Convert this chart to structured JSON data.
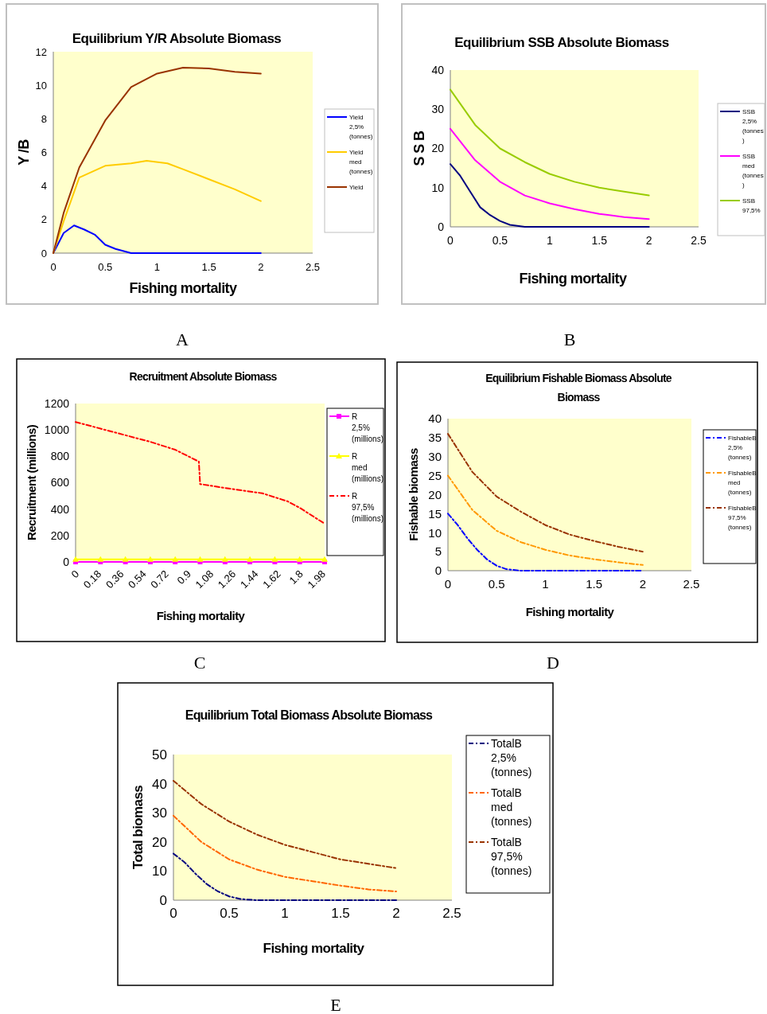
{
  "chart_data": [
    {
      "type": "line",
      "title": "Equilibrium Y/R Absolute Biomass",
      "xlabel": "Fishing mortality",
      "ylabel": "Y /B",
      "xlim": [
        0,
        2.5
      ],
      "xticks": [
        0,
        0.5,
        1,
        1.5,
        2,
        2.5
      ],
      "ylim": [
        0,
        12
      ],
      "yticks": [
        0,
        2,
        4,
        6,
        8,
        10,
        12
      ],
      "legend": "right",
      "annotations": [
        "A"
      ],
      "series": [
        {
          "name": "Yield 2,5% (tonnes)",
          "color": "#0000ff",
          "x": [
            0,
            0.1,
            0.2,
            0.3,
            0.4,
            0.5,
            0.6,
            0.75,
            1,
            1.5,
            2
          ],
          "values": [
            0,
            1.2,
            1.65,
            1.4,
            1.1,
            0.5,
            0.25,
            0,
            0,
            0,
            0
          ]
        },
        {
          "name": "Yield med (tonnes)",
          "color": "#ffcc00",
          "x": [
            0,
            0.1,
            0.25,
            0.5,
            0.75,
            0.9,
            1.1,
            1.25,
            1.5,
            1.75,
            2
          ],
          "values": [
            0,
            1.9,
            4.5,
            5.2,
            5.35,
            5.5,
            5.35,
            5,
            4.4,
            3.8,
            3.1
          ]
        },
        {
          "name": "Yield",
          "color": "#993300",
          "x": [
            0,
            0.1,
            0.25,
            0.5,
            0.75,
            1,
            1.25,
            1.5,
            1.75,
            2
          ],
          "values": [
            0,
            2.4,
            5.1,
            7.9,
            9.9,
            10.7,
            11.05,
            11,
            10.8,
            10.7
          ]
        }
      ]
    },
    {
      "type": "line",
      "title": "Equilibrium SSB Absolute Biomass",
      "xlabel": "Fishing mortality",
      "ylabel": "S S B",
      "xlim": [
        0,
        2.5
      ],
      "xticks": [
        0,
        0.5,
        1,
        1.5,
        2,
        2.5
      ],
      "ylim": [
        0,
        40
      ],
      "yticks": [
        0,
        10,
        20,
        30,
        40
      ],
      "legend": "right",
      "annotations": [
        "B"
      ],
      "series": [
        {
          "name": "SSB 2,5% (tonnes )",
          "color": "#000080",
          "x": [
            0,
            0.1,
            0.2,
            0.3,
            0.4,
            0.5,
            0.6,
            0.75,
            1,
            1.5,
            2
          ],
          "values": [
            16,
            13,
            9,
            5,
            3,
            1.5,
            0.5,
            0,
            0,
            0,
            0
          ]
        },
        {
          "name": "SSB med (tonnes )",
          "color": "#ff00ff",
          "x": [
            0,
            0.25,
            0.5,
            0.75,
            1,
            1.25,
            1.5,
            1.75,
            2
          ],
          "values": [
            25,
            17,
            11.5,
            8,
            6,
            4.5,
            3.3,
            2.5,
            2
          ]
        },
        {
          "name": "SSB 97,5%",
          "color": "#99cc00",
          "x": [
            0,
            0.25,
            0.5,
            0.75,
            1,
            1.25,
            1.5,
            1.75,
            2
          ],
          "values": [
            35,
            26,
            20,
            16.5,
            13.5,
            11.5,
            10,
            9,
            8
          ]
        }
      ]
    },
    {
      "type": "line",
      "title": "Recruitment Absolute Biomass",
      "xlabel": "Fishing mortality",
      "ylabel": "Recruitment (millions)",
      "xlim": [
        0,
        2
      ],
      "xticks": [
        0,
        0.18,
        0.36,
        0.54,
        0.72,
        0.9,
        1.08,
        1.26,
        1.44,
        1.62,
        1.8,
        1.98
      ],
      "ylim": [
        0,
        1200
      ],
      "yticks": [
        0,
        200,
        400,
        600,
        800,
        1000,
        1200
      ],
      "legend": "right",
      "annotations": [
        "C"
      ],
      "series": [
        {
          "name": "R 2,5% (millions)",
          "color": "#ff00ff",
          "marker": "square",
          "x": [
            0,
            0.2,
            0.4,
            0.6,
            0.8,
            1,
            1.2,
            1.4,
            1.6,
            1.8,
            2
          ],
          "values": [
            0,
            0,
            0,
            0,
            0,
            0,
            0,
            0,
            0,
            0,
            0
          ]
        },
        {
          "name": "R med (millions)",
          "color": "#ffff00",
          "marker": "triangle",
          "x": [
            0,
            0.2,
            0.4,
            0.6,
            0.8,
            1,
            1.2,
            1.4,
            1.6,
            1.8,
            2
          ],
          "values": [
            20,
            20,
            20,
            20,
            20,
            20,
            20,
            20,
            20,
            20,
            20
          ]
        },
        {
          "name": "R 97,5% (millions)",
          "color": "#ff0000",
          "line_style": "dashed",
          "x": [
            0,
            0.2,
            0.4,
            0.6,
            0.8,
            0.99,
            1.0,
            1.2,
            1.5,
            1.7,
            1.8,
            2
          ],
          "values": [
            1060,
            1010,
            960,
            910,
            850,
            760,
            590,
            560,
            520,
            460,
            410,
            290
          ]
        }
      ]
    },
    {
      "type": "line",
      "title": "Equilibrium Fishable Biomass Absolute Biomass",
      "xlabel": "Fishing mortality",
      "ylabel": "Fishable biomass",
      "xlim": [
        0,
        2.5
      ],
      "xticks": [
        0,
        0.5,
        1,
        1.5,
        2,
        2.5
      ],
      "ylim": [
        0,
        40
      ],
      "yticks": [
        0,
        5,
        10,
        15,
        20,
        25,
        30,
        35,
        40
      ],
      "legend": "right",
      "line_style": "dashed",
      "annotations": [
        "D"
      ],
      "series": [
        {
          "name": "FishableB 2,5% (tonnes)",
          "color": "#0000ff",
          "x": [
            0,
            0.1,
            0.2,
            0.3,
            0.4,
            0.5,
            0.6,
            0.75,
            1,
            1.5,
            2
          ],
          "values": [
            15,
            12,
            8.5,
            5.5,
            3,
            1.3,
            0.4,
            0,
            0,
            0,
            0
          ]
        },
        {
          "name": "FishableB med (tonnes)",
          "color": "#ff9900",
          "x": [
            0,
            0.25,
            0.5,
            0.75,
            1,
            1.25,
            1.5,
            1.75,
            2
          ],
          "values": [
            25,
            16,
            10.5,
            7.5,
            5.5,
            4,
            3,
            2.2,
            1.5
          ]
        },
        {
          "name": "FishableB 97,5% (tonnes)",
          "color": "#993300",
          "x": [
            0,
            0.25,
            0.5,
            0.75,
            1,
            1.25,
            1.5,
            1.75,
            2
          ],
          "values": [
            36,
            26,
            19.5,
            15.5,
            12,
            9.5,
            7.8,
            6.3,
            5
          ]
        }
      ]
    },
    {
      "type": "line",
      "title": "Equilibrium Total Biomass Absolute Biomass",
      "xlabel": "Fishing mortality",
      "ylabel": "Total biomass",
      "xlim": [
        0,
        2.5
      ],
      "xticks": [
        0,
        0.5,
        1,
        1.5,
        2,
        2.5
      ],
      "ylim": [
        0,
        50
      ],
      "yticks": [
        0,
        10,
        20,
        30,
        40,
        50
      ],
      "legend": "right",
      "line_style": "dashed",
      "annotations": [
        "E"
      ],
      "series": [
        {
          "name": "TotalB 2,5% (tonnes)",
          "color": "#000080",
          "x": [
            0,
            0.1,
            0.2,
            0.3,
            0.4,
            0.5,
            0.6,
            0.75,
            1,
            1.5,
            2
          ],
          "values": [
            16,
            13,
            9,
            5.5,
            3,
            1.3,
            0.4,
            0,
            0,
            0,
            0
          ]
        },
        {
          "name": "TotalB med (tonnes)",
          "color": "#ff6600",
          "x": [
            0,
            0.25,
            0.5,
            0.75,
            1,
            1.25,
            1.5,
            1.75,
            2
          ],
          "values": [
            29,
            20,
            14,
            10.5,
            8,
            6.5,
            5,
            3.7,
            3
          ]
        },
        {
          "name": "TotalB 97,5% (tonnes)",
          "color": "#993300",
          "x": [
            0,
            0.25,
            0.5,
            0.75,
            1,
            1.25,
            1.5,
            1.75,
            2
          ],
          "values": [
            41,
            33,
            27,
            22.5,
            19,
            16.5,
            14,
            12.5,
            11
          ]
        }
      ]
    }
  ]
}
